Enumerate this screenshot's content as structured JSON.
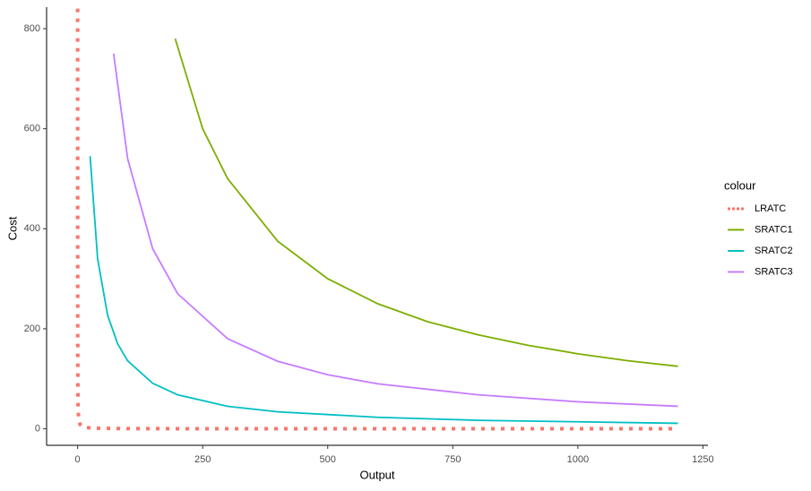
{
  "chart_data": {
    "type": "line",
    "x_label": "Output",
    "y_label": "Cost",
    "xlim": [
      -62,
      1260
    ],
    "ylim": [
      -33,
      843
    ],
    "xticks": [
      0,
      250,
      500,
      750,
      1000,
      1250
    ],
    "yticks": [
      0,
      200,
      400,
      600,
      800
    ],
    "grid": false,
    "legend_title": "colour",
    "legend_position": "right",
    "series": [
      {
        "name": "LRATC",
        "color": "#F8766D",
        "linestyle": "dotted",
        "x": [
          0.05,
          0.1,
          0.2,
          0.5,
          1,
          2,
          5,
          10,
          25,
          50,
          100,
          200,
          400,
          600,
          800,
          1000,
          1200
        ],
        "values": [
          840,
          420,
          210,
          84,
          42,
          21,
          8.4,
          4.2,
          1.68,
          0.84,
          0.42,
          0.21,
          0.105,
          0.07,
          0.0525,
          0.042,
          0.035
        ]
      },
      {
        "name": "SRATC1",
        "color": "#7CAE00",
        "linestyle": "solid",
        "x": [
          195,
          250,
          300,
          400,
          500,
          600,
          700,
          800,
          900,
          1000,
          1100,
          1200
        ],
        "values": [
          780,
          600,
          500,
          375,
          300,
          250,
          214,
          188,
          167,
          150,
          136,
          125
        ]
      },
      {
        "name": "SRATC2",
        "color": "#00BFC4",
        "linestyle": "solid",
        "x": [
          25,
          40,
          60,
          80,
          100,
          150,
          200,
          300,
          400,
          600,
          800,
          1000,
          1200
        ],
        "values": [
          545,
          340,
          227,
          170,
          136,
          91,
          68,
          45,
          34,
          23,
          17,
          14,
          11
        ]
      },
      {
        "name": "SRATC3",
        "color": "#C77CFF",
        "linestyle": "solid",
        "x": [
          72,
          100,
          150,
          200,
          300,
          400,
          500,
          600,
          800,
          1000,
          1200
        ],
        "values": [
          750,
          540,
          360,
          270,
          180,
          135,
          108,
          90,
          68,
          54,
          45
        ]
      }
    ]
  }
}
